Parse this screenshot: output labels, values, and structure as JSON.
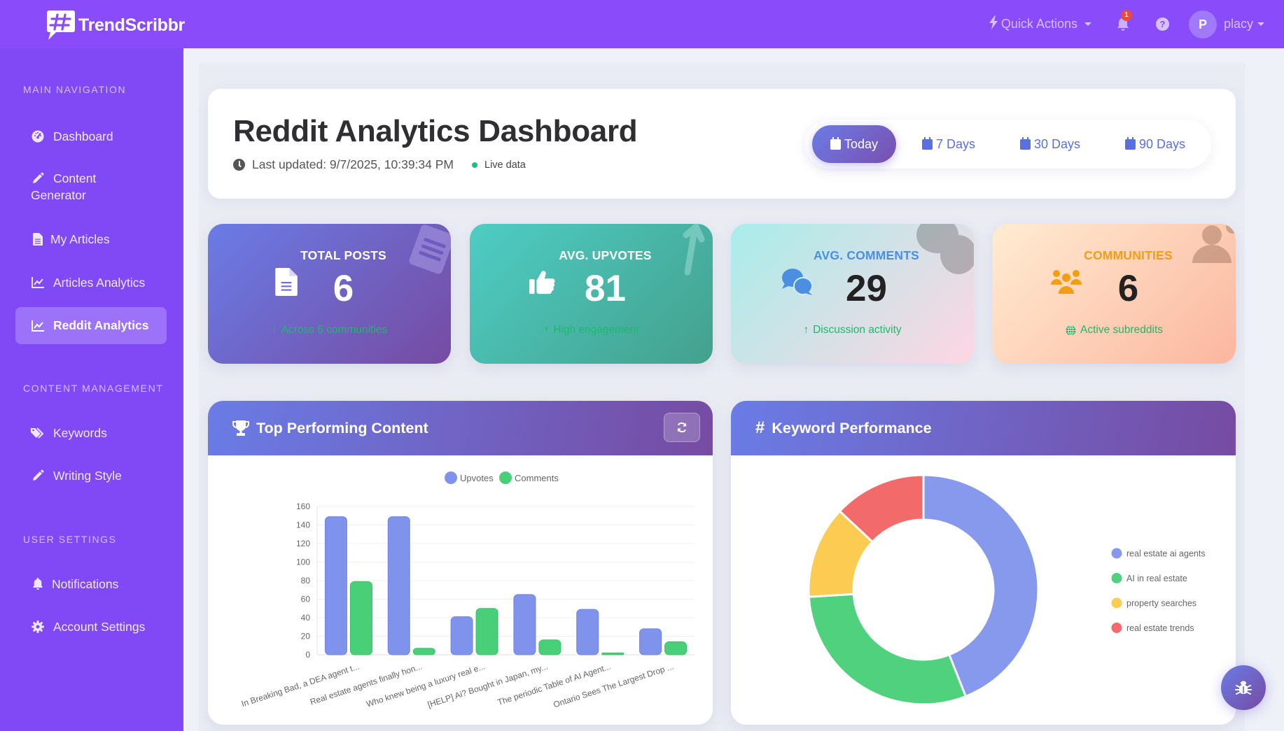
{
  "app": {
    "brand": "TrendScribbr",
    "quick_actions": "Quick Actions",
    "notification_count": "1",
    "help_symbol": "?",
    "user_initial": "P",
    "username": "placy"
  },
  "sidebar": {
    "sections": [
      {
        "title": "MAIN NAVIGATION",
        "items": [
          {
            "label": "Dashboard",
            "icon": "gauge-icon"
          },
          {
            "label": "Content",
            "label2": "Generator",
            "icon": "pencil-icon"
          },
          {
            "label": "My Articles",
            "icon": "file-icon"
          },
          {
            "label": "Articles Analytics",
            "icon": "line-chart-icon"
          },
          {
            "label": "Reddit Analytics",
            "icon": "line-chart-icon",
            "active": true
          }
        ]
      },
      {
        "title": "CONTENT MANAGEMENT",
        "items": [
          {
            "label": "Keywords",
            "icon": "tags-icon"
          },
          {
            "label": "Writing Style",
            "icon": "pencil-icon"
          }
        ]
      },
      {
        "title": "USER SETTINGS",
        "items": [
          {
            "label": "Notifications",
            "icon": "bell-icon"
          },
          {
            "label": "Account Settings",
            "icon": "gear-icon"
          }
        ]
      }
    ]
  },
  "header": {
    "title": "Reddit Analytics Dashboard",
    "last_updated": "Last updated: 9/7/2025, 10:39:34 PM",
    "live": "Live data",
    "ranges": [
      "Today",
      "7 Days",
      "30 Days",
      "90 Days"
    ],
    "active_range": "Today"
  },
  "stats": [
    {
      "label": "TOTAL POSTS",
      "value": "6",
      "foot": "Across 6 communities",
      "label_color": "#ffffff",
      "value_color": "#ffffff",
      "foot_color": "#1db96a",
      "icon": "file-icon"
    },
    {
      "label": "AVG. UPVOTES",
      "value": "81",
      "foot": "High engagement",
      "label_color": "#ffffff",
      "value_color": "#ffffff",
      "foot_color": "#1db96a",
      "icon": "thumbs-up-icon"
    },
    {
      "label": "AVG. COMMENTS",
      "value": "29",
      "foot": "Discussion activity",
      "label_color": "#4a8fe0",
      "value_color": "#222222",
      "foot_color": "#1db96a",
      "icon": "comments-icon"
    },
    {
      "label": "COMMUNITIES",
      "value": "6",
      "foot": "Active subreddits",
      "label_color": "#f29d12",
      "value_color": "#222222",
      "foot_color": "#1db96a",
      "icon": "users-icon"
    }
  ],
  "panels": {
    "top_content": {
      "title": "Top Performing Content"
    },
    "keywords": {
      "title": "Keyword Performance"
    }
  },
  "chart_data": [
    {
      "type": "bar",
      "title": "Top Performing Content",
      "categories": [
        "In Breaking Bad, a DEA agent t...",
        "Real estate agents finally hon...",
        "Who knew being a luxury real e...",
        "[HELP] Ai? Bought in Japan, my...",
        "The periodic Table of AI Agent...",
        "Ontario Sees The Largest Drop ..."
      ],
      "series": [
        {
          "name": "Upvotes",
          "color": "#7f93ec",
          "values": [
            149,
            149,
            41,
            65,
            49,
            28
          ]
        },
        {
          "name": "Comments",
          "color": "#48cf78",
          "values": [
            79,
            7,
            50,
            16,
            2,
            14
          ]
        }
      ],
      "yticks": [
        0,
        20,
        40,
        60,
        80,
        100,
        120,
        140,
        160
      ],
      "ylim": [
        0,
        160
      ],
      "legend_position": "top",
      "grid": true
    },
    {
      "type": "pie",
      "title": "Keyword Performance",
      "donut": true,
      "labels": [
        "real estate ai agents",
        "AI in real estate",
        "property searches",
        "real estate trends"
      ],
      "values": [
        44,
        30,
        13,
        13
      ],
      "colors": [
        "#8799ed",
        "#50d17e",
        "#fccb52",
        "#f26a6a"
      ],
      "legend_position": "right"
    }
  ]
}
